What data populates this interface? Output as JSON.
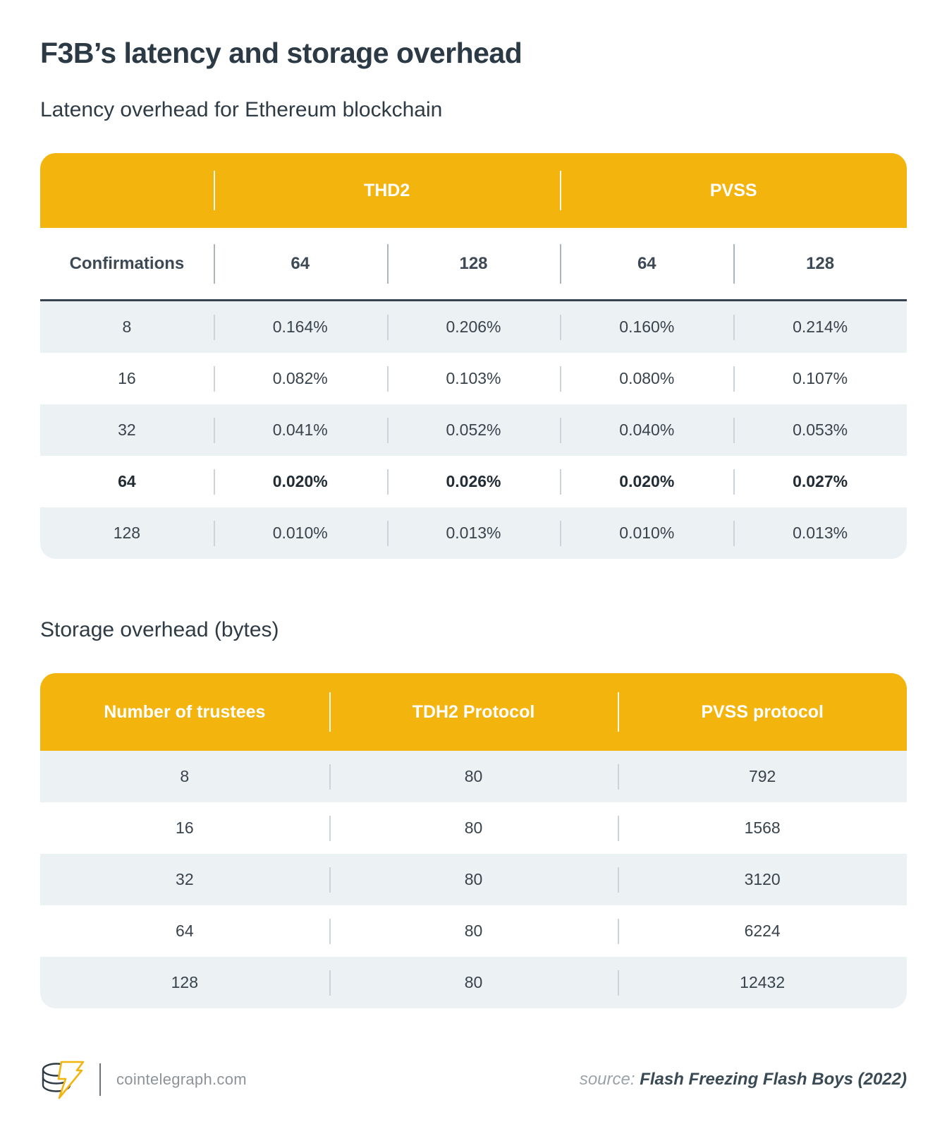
{
  "page": {
    "title": "F3B’s latency and storage overhead"
  },
  "colors": {
    "accent_yellow": "#f2b40d",
    "row_alt_background": "#ecf1f3",
    "dark_slate_text": "#2c3a45",
    "rule_dark": "#37434e"
  },
  "chart_data": [
    {
      "type": "table",
      "title": "Latency overhead for Ethereum blockchain",
      "group_headers": [
        {
          "label": "THD2",
          "span": 2
        },
        {
          "label": "PVSS",
          "span": 2
        }
      ],
      "columns": [
        "Confirmations",
        "64",
        "128",
        "64",
        "128"
      ],
      "rows": [
        [
          "8",
          "0.164%",
          "0.206%",
          "0.160%",
          "0.214%"
        ],
        [
          "16",
          "0.082%",
          "0.103%",
          "0.080%",
          "0.107%"
        ],
        [
          "32",
          "0.041%",
          "0.052%",
          "0.040%",
          "0.053%"
        ],
        [
          "64",
          "0.020%",
          "0.026%",
          "0.020%",
          "0.027%"
        ],
        [
          "128",
          "0.010%",
          "0.013%",
          "0.010%",
          "0.013%"
        ]
      ],
      "bold_row_index": 3,
      "layout": {
        "zebra_start": "shaded",
        "grid": false,
        "header_fill": "#f2b40d"
      }
    },
    {
      "type": "table",
      "title": "Storage overhead (bytes)",
      "columns": [
        "Number of trustees",
        "TDH2 Protocol",
        "PVSS protocol"
      ],
      "rows": [
        [
          "8",
          "80",
          "792"
        ],
        [
          "16",
          "80",
          "1568"
        ],
        [
          "32",
          "80",
          "3120"
        ],
        [
          "64",
          "80",
          "6224"
        ],
        [
          "128",
          "80",
          "12432"
        ]
      ],
      "bold_row_index": -1,
      "layout": {
        "zebra_start": "shaded",
        "grid": false,
        "header_fill": "#f2b40d"
      }
    }
  ],
  "footer": {
    "logo_icon": "cointelegraph-coin-bolt-logo",
    "site": "cointelegraph.com",
    "source_label": "source:",
    "source_name": "Flash Freezing Flash Boys (2022)"
  }
}
